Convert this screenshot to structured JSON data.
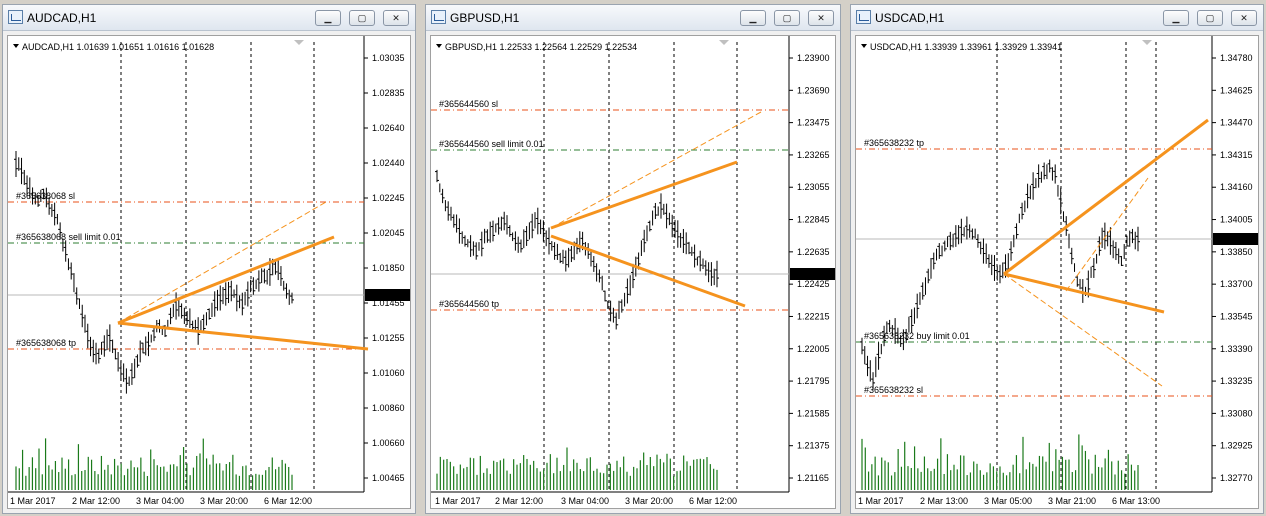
{
  "windows": [
    {
      "title": "AUDCAD,H1",
      "info": "AUDCAD,H1  1.01639 1.01651 1.01616 1.01628",
      "price_labels": [
        "1.03035",
        "1.02835",
        "1.02640",
        "1.02440",
        "1.02245",
        "1.02045",
        "1.01850",
        "1.01455",
        "1.01255",
        "1.01060",
        "1.00860",
        "1.00660",
        "1.00465"
      ],
      "current_price": "1.01628",
      "date_labels": [
        "1 Mar 2017",
        "2 Mar 12:00",
        "3 Mar 04:00",
        "3 Mar 20:00",
        "6 Mar 12:00"
      ],
      "order_labels": [
        "#365638068 sl",
        "#365638068 sell limit 0.01",
        "#365638068 tp"
      ],
      "colors": {
        "sl": "#e8501a",
        "pending": "#2e7d32",
        "tp": "#e8501a",
        "trend": "#f5931e",
        "volume": "#1a7a1a",
        "candle": "#000000"
      }
    },
    {
      "title": "GBPUSD,H1",
      "info": "GBPUSD,H1  1.22533 1.22564 1.22529 1.22534",
      "price_labels": [
        "1.23900",
        "1.23690",
        "1.23475",
        "1.23265",
        "1.23055",
        "1.22845",
        "1.22635",
        "1.22425",
        "1.22215",
        "1.22005",
        "1.21795",
        "1.21585",
        "1.21375",
        "1.21165"
      ],
      "current_price": "1.22534",
      "date_labels": [
        "1 Mar 2017",
        "2 Mar 12:00",
        "3 Mar 04:00",
        "3 Mar 20:00",
        "6 Mar 12:00"
      ],
      "order_labels": [
        "#365644560 sl",
        "#365644560 sell limit 0.01",
        "#365644560 tp"
      ],
      "colors": {
        "sl": "#e8501a",
        "pending": "#2e7d32",
        "tp": "#e8501a",
        "trend": "#f5931e",
        "volume": "#1a7a1a",
        "candle": "#000000"
      }
    },
    {
      "title": "USDCAD,H1",
      "info": "USDCAD,H1  1.33939 1.33961 1.33929 1.33941",
      "price_labels": [
        "1.34780",
        "1.34625",
        "1.34470",
        "1.34315",
        "1.34160",
        "1.34005",
        "1.33850",
        "1.33700",
        "1.33545",
        "1.33390",
        "1.33235",
        "1.33080",
        "1.32925",
        "1.32770"
      ],
      "current_price": "1.33941",
      "date_labels": [
        "1 Mar 2017",
        "2 Mar 13:00",
        "3 Mar 05:00",
        "3 Mar 21:00",
        "6 Mar 13:00"
      ],
      "order_labels": [
        "#365638232 tp",
        "#365638232 buy limit 0.01",
        "#365638232 sl"
      ],
      "colors": {
        "sl": "#e8501a",
        "pending": "#2e7d32",
        "tp": "#e8501a",
        "trend": "#f5931e",
        "volume": "#1a7a1a",
        "candle": "#000000"
      }
    }
  ],
  "window_buttons": {
    "minimize": "▁",
    "maximize": "▢",
    "close": "✕"
  }
}
